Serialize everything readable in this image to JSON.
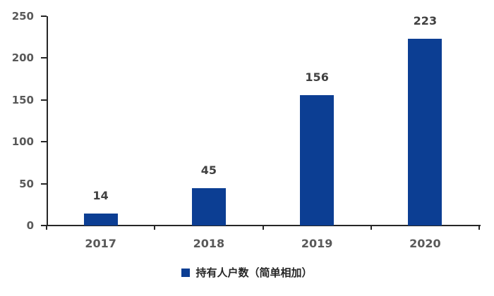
{
  "chart_data": {
    "type": "bar",
    "categories": [
      "2017",
      "2018",
      "2019",
      "2020"
    ],
    "values": [
      14,
      45,
      156,
      223
    ],
    "series_name": "持有人户数（简单相加）",
    "title": "",
    "xlabel": "",
    "ylabel": "",
    "ylim": [
      0,
      250
    ],
    "yticks": [
      0,
      50,
      100,
      150,
      200,
      250
    ],
    "grid": false,
    "legend_position": "bottom",
    "colors": {
      "bar": "#0c3e93",
      "legend_marker": "#0c3e93",
      "value_label": "#404040",
      "tick_label": "#595959",
      "axis_line": "#262626",
      "legend_text": "#262626",
      "background": "#ffffff"
    }
  }
}
